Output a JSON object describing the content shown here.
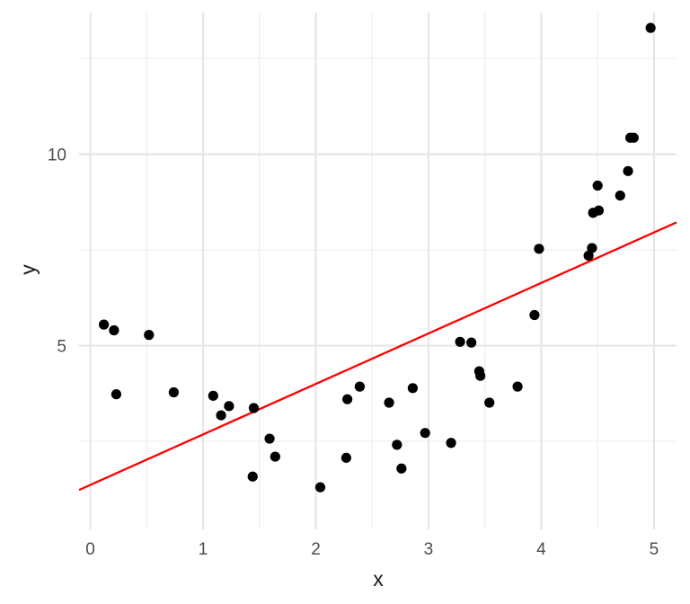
{
  "chart_data": {
    "type": "scatter",
    "title": "",
    "xlabel": "x",
    "ylabel": "y",
    "xlim": [
      -0.1,
      5.2
    ],
    "ylim": [
      0.2,
      13.7
    ],
    "grid": true,
    "x_ticks": [
      0,
      1,
      2,
      3,
      4,
      5
    ],
    "x_tick_labels": [
      "0",
      "1",
      "2",
      "3",
      "4",
      "5"
    ],
    "x_minor_ticks": [
      0.5,
      1.5,
      2.5,
      3.5,
      4.5
    ],
    "y_ticks": [
      5,
      10
    ],
    "y_tick_labels": [
      "5",
      "10"
    ],
    "y_minor_ticks": [
      2.5,
      7.5,
      12.5
    ],
    "colors": {
      "points": "#000000",
      "fit_line": "#ff0000",
      "grid_major": "#e6e6e6",
      "grid_minor": "#f0f0f0"
    },
    "series": [
      {
        "type": "scatter",
        "points": [
          [
            0.12,
            5.55
          ],
          [
            0.21,
            5.4
          ],
          [
            0.23,
            3.73
          ],
          [
            0.52,
            5.28
          ],
          [
            0.74,
            3.78
          ],
          [
            1.09,
            3.69
          ],
          [
            1.16,
            3.18
          ],
          [
            1.23,
            3.42
          ],
          [
            1.44,
            1.58
          ],
          [
            1.45,
            3.37
          ],
          [
            1.59,
            2.57
          ],
          [
            1.64,
            2.1
          ],
          [
            2.04,
            1.3
          ],
          [
            2.27,
            2.07
          ],
          [
            2.28,
            3.6
          ],
          [
            2.39,
            3.93
          ],
          [
            2.65,
            3.51
          ],
          [
            2.72,
            2.41
          ],
          [
            2.76,
            1.79
          ],
          [
            2.86,
            3.89
          ],
          [
            2.97,
            2.72
          ],
          [
            3.2,
            2.46
          ],
          [
            3.28,
            5.1
          ],
          [
            3.38,
            5.08
          ],
          [
            3.45,
            4.33
          ],
          [
            3.46,
            4.21
          ],
          [
            3.54,
            3.51
          ],
          [
            3.79,
            3.93
          ],
          [
            3.94,
            5.8
          ],
          [
            3.98,
            7.53
          ],
          [
            4.42,
            7.35
          ],
          [
            4.45,
            7.55
          ],
          [
            4.46,
            8.47
          ],
          [
            4.5,
            9.18
          ],
          [
            4.51,
            8.53
          ],
          [
            4.7,
            8.92
          ],
          [
            4.77,
            9.56
          ],
          [
            4.79,
            10.43
          ],
          [
            4.82,
            10.43
          ],
          [
            4.97,
            13.3
          ]
        ]
      },
      {
        "type": "line",
        "points": [
          [
            -0.1,
            1.23
          ],
          [
            5.2,
            8.22
          ]
        ]
      }
    ]
  }
}
